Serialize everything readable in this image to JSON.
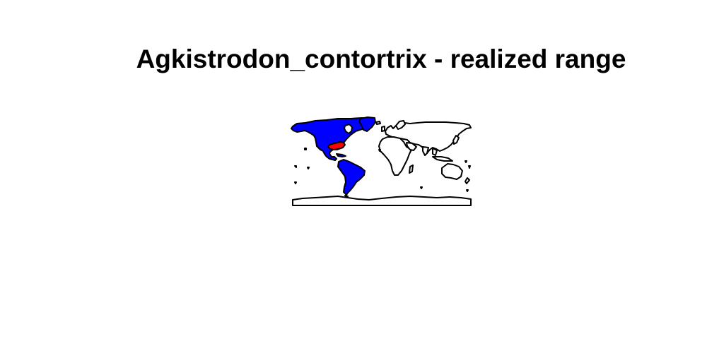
{
  "title": "Agkistrodon_contortrix - realized range",
  "map": {
    "projection": "equirectangular",
    "extent": {
      "lon": [
        -180,
        180
      ],
      "lat": [
        -90,
        90
      ]
    },
    "colors": {
      "background": "#ffffff",
      "land": "#ffffff",
      "outline": "#000000",
      "highlight_region": "#0000ff",
      "range": "#ff0000"
    },
    "highlight_region": "Americas",
    "range_region": "Eastern United States"
  }
}
